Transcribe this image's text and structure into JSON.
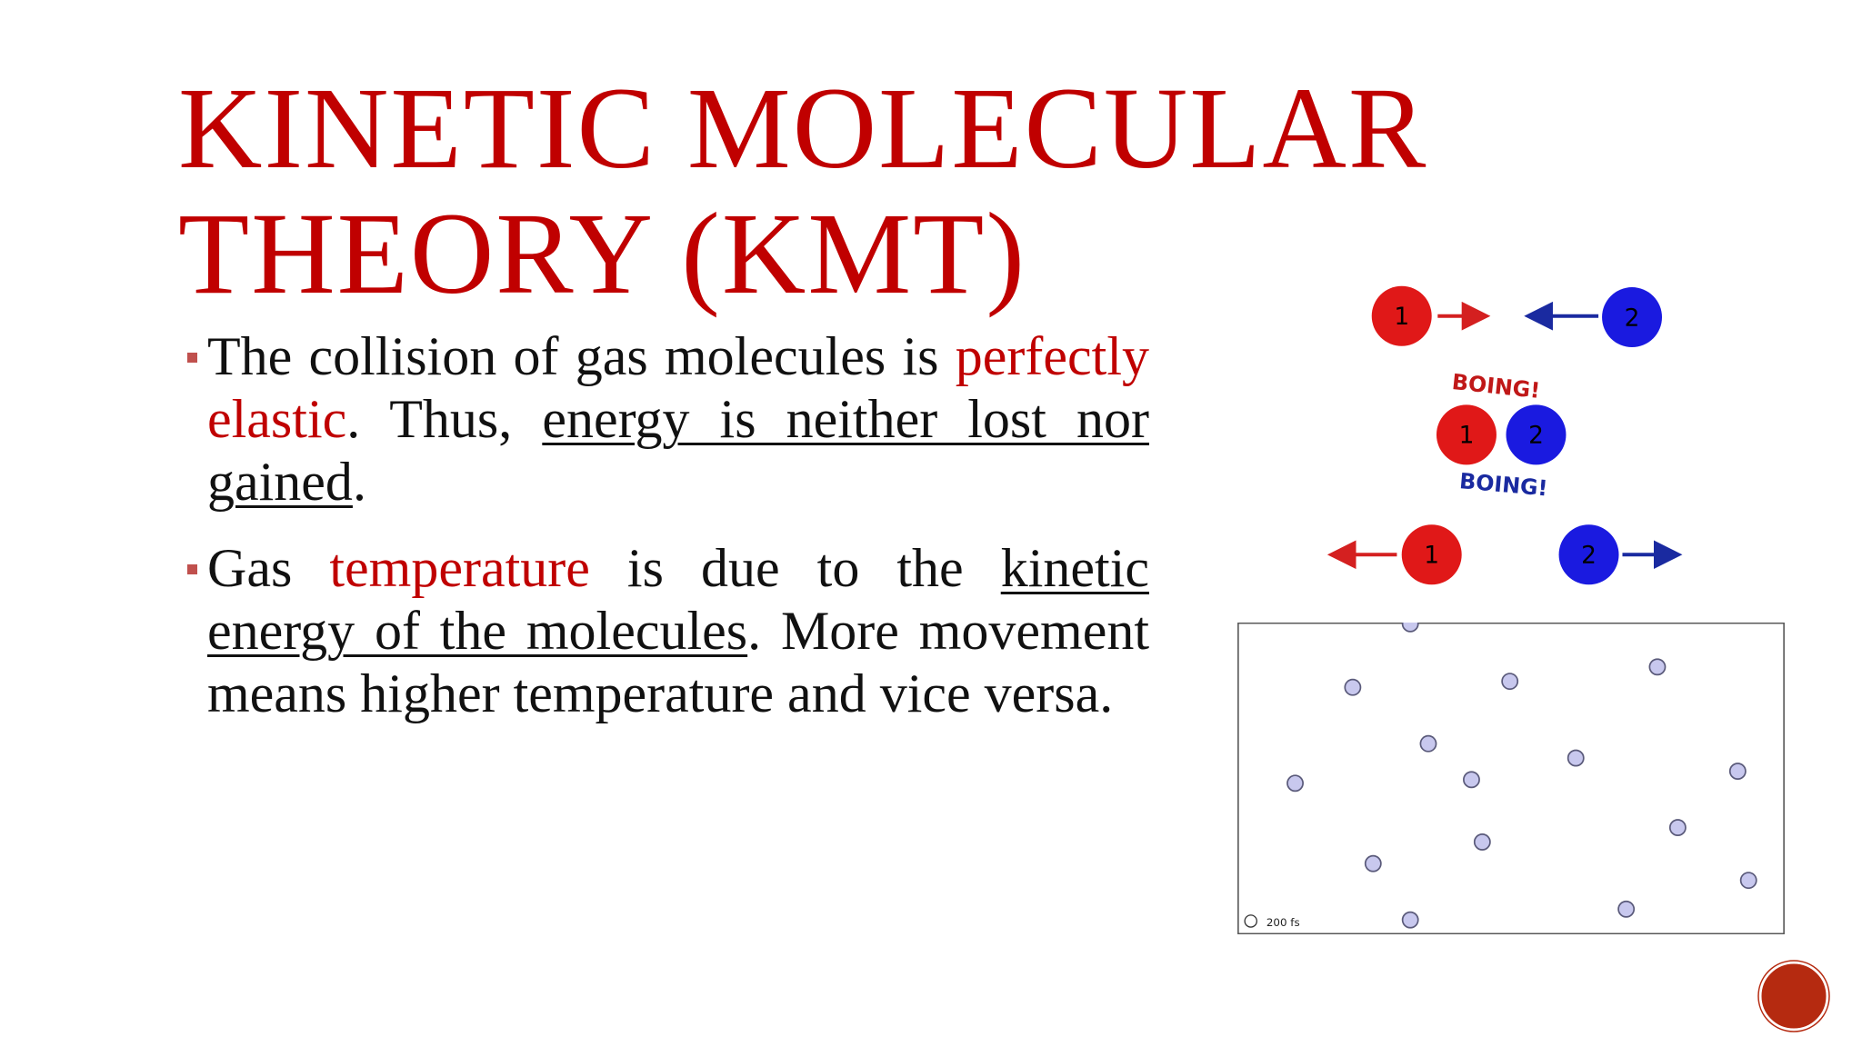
{
  "title": [
    "KINETIC MOLECULAR",
    "THEORY (KMT)"
  ],
  "bullets": [
    {
      "runs": [
        {
          "text": "The collision of gas molecules is "
        },
        {
          "text": "perfectly elastic",
          "style": "red"
        },
        {
          "text": ". Thus, "
        },
        {
          "text": "energy is neither lost nor gained",
          "style": "underline"
        },
        {
          "text": "."
        }
      ]
    },
    {
      "runs": [
        {
          "text": "Gas "
        },
        {
          "text": "temperature",
          "style": "red"
        },
        {
          "text": " is due to the "
        },
        {
          "text": "kinetic energy of the molecules",
          "style": "underline"
        },
        {
          "text": ". More movement means higher temperature and vice versa."
        }
      ]
    }
  ],
  "collision": {
    "labels": [
      "1",
      "2"
    ],
    "sound": "BOING!"
  },
  "simulation": {
    "time": "200 fs"
  }
}
